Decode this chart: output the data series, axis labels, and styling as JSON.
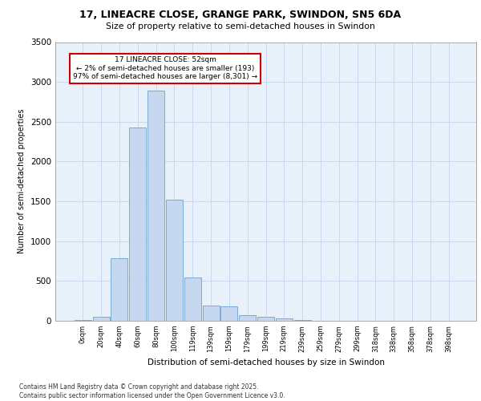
{
  "title1": "17, LINEACRE CLOSE, GRANGE PARK, SWINDON, SN5 6DA",
  "title2": "Size of property relative to semi-detached houses in Swindon",
  "xlabel": "Distribution of semi-detached houses by size in Swindon",
  "ylabel": "Number of semi-detached properties",
  "bar_labels": [
    "0sqm",
    "20sqm",
    "40sqm",
    "60sqm",
    "80sqm",
    "100sqm",
    "119sqm",
    "139sqm",
    "159sqm",
    "179sqm",
    "199sqm",
    "219sqm",
    "239sqm",
    "259sqm",
    "279sqm",
    "299sqm",
    "318sqm",
    "338sqm",
    "358sqm",
    "378sqm",
    "398sqm"
  ],
  "bar_values": [
    15,
    50,
    790,
    2430,
    2890,
    1520,
    540,
    195,
    185,
    75,
    50,
    30,
    15,
    5,
    5,
    5,
    2,
    0,
    0,
    0,
    0
  ],
  "bar_color": "#c5d8f0",
  "bar_edge_color": "#7baad4",
  "background_color": "#e8f0fa",
  "grid_color": "#c8d8ee",
  "annotation_text": "17 LINEACRE CLOSE: 52sqm\n← 2% of semi-detached houses are smaller (193)\n97% of semi-detached houses are larger (8,301) →",
  "annotation_box_color": "#ffffff",
  "annotation_border_color": "#cc0000",
  "ylim": [
    0,
    3500
  ],
  "yticks": [
    0,
    500,
    1000,
    1500,
    2000,
    2500,
    3000,
    3500
  ],
  "footer_text": "Contains HM Land Registry data © Crown copyright and database right 2025.\nContains public sector information licensed under the Open Government Licence v3.0."
}
